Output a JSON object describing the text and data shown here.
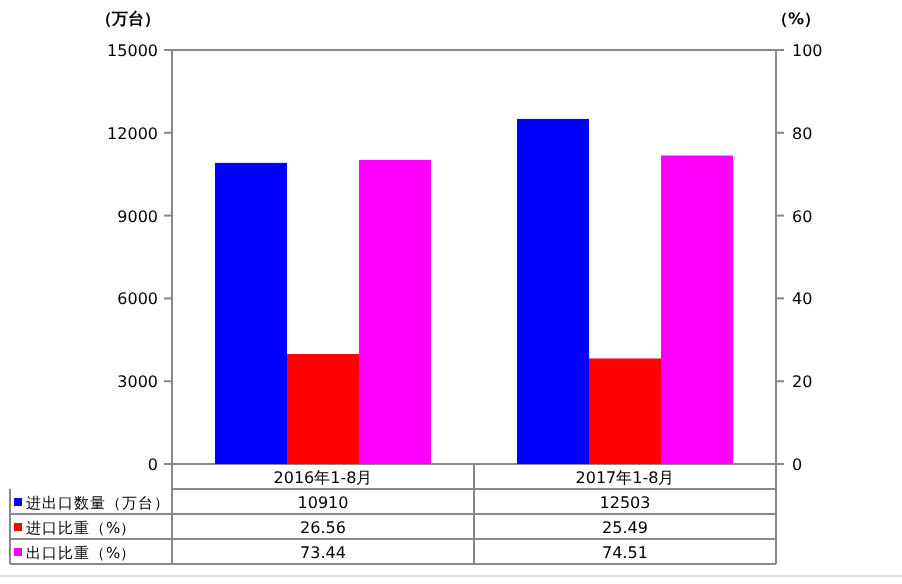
{
  "chart_data": {
    "type": "bar",
    "categories": [
      "2016年1-8月",
      "2017年1-8月"
    ],
    "series": [
      {
        "name": "进出口数量（万台）",
        "color": "#0000ff",
        "values": [
          10910,
          12503
        ]
      },
      {
        "name": "进口比重（%）",
        "color": "#ff0000",
        "values": [
          26.56,
          25.49
        ],
        "axis": "y2"
      },
      {
        "name": "出口比重（%）",
        "color": "#ff00ff",
        "values": [
          73.44,
          74.51
        ],
        "axis": "y2"
      }
    ],
    "ylabel": "（万台）",
    "y2label": "（%）",
    "ylim": [
      0,
      15000
    ],
    "yticks": [
      0,
      3000,
      6000,
      9000,
      12000,
      15000
    ],
    "y2lim": [
      0,
      100
    ],
    "y2ticks": [
      0,
      20,
      40,
      60,
      80,
      100
    ],
    "data_labels": true,
    "legend": "bottom"
  }
}
